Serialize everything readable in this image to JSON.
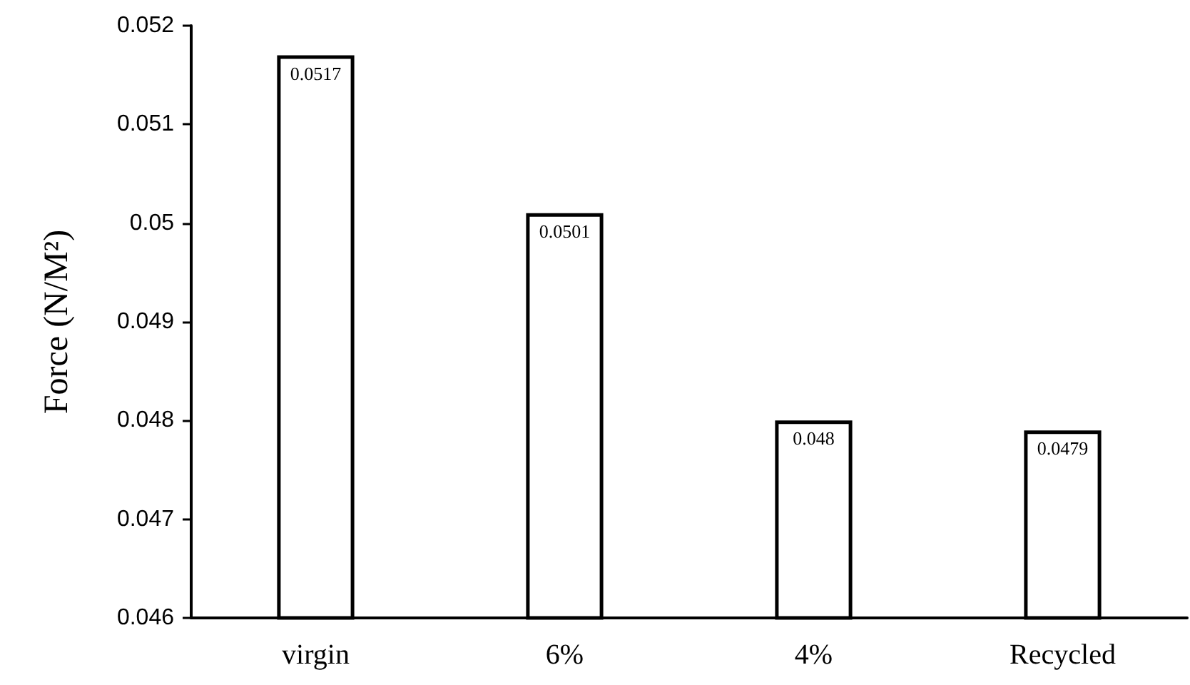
{
  "chart_data": {
    "type": "bar",
    "ylabel": "Force (N/M²)",
    "categories": [
      "virgin",
      "6%",
      "4%",
      "Recycled"
    ],
    "values": [
      0.0517,
      0.0501,
      0.048,
      0.0479
    ],
    "color": "#ffffff",
    "ylim": [
      0.046,
      0.052
    ],
    "yticks": [
      0.046,
      0.047,
      0.048,
      0.049,
      0.05,
      0.051,
      0.052
    ],
    "data_labels": true
  }
}
